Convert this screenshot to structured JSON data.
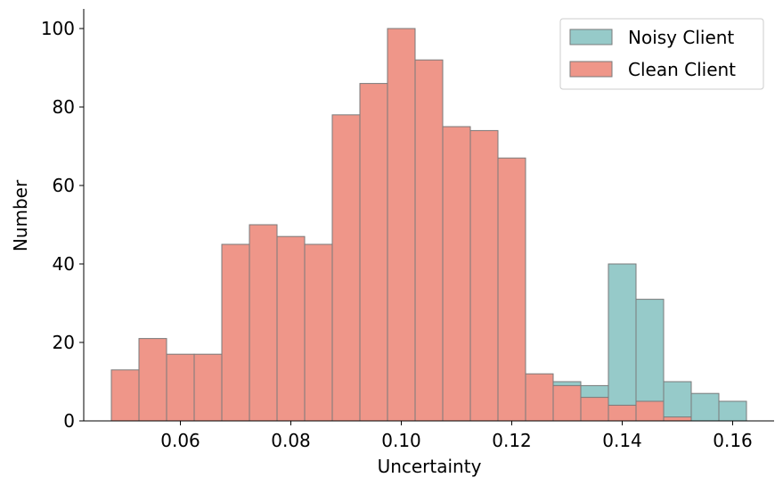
{
  "chart_data": {
    "type": "bar",
    "subtype": "overlapping-histogram",
    "xlabel": "Uncertainty",
    "ylabel": "Number",
    "xlim": [
      0.0425,
      0.1675
    ],
    "ylim": [
      0,
      105
    ],
    "xticks": [
      0.06,
      0.08,
      0.1,
      0.12,
      0.14,
      0.16
    ],
    "xtick_labels": [
      "0.06",
      "0.08",
      "0.10",
      "0.12",
      "0.14",
      "0.16"
    ],
    "yticks": [
      0,
      20,
      40,
      60,
      80,
      100
    ],
    "ytick_labels": [
      "0",
      "20",
      "40",
      "60",
      "80",
      "100"
    ],
    "grid": false,
    "legend_position": "top-right",
    "series": [
      {
        "name": "Noisy Client",
        "color": "#96cac9",
        "bins": [
          {
            "x0": 0.1275,
            "x1": 0.1325,
            "value": 10
          },
          {
            "x0": 0.1325,
            "x1": 0.1375,
            "value": 9
          },
          {
            "x0": 0.1375,
            "x1": 0.1425,
            "value": 40
          },
          {
            "x0": 0.1425,
            "x1": 0.1475,
            "value": 31
          },
          {
            "x0": 0.1475,
            "x1": 0.1525,
            "value": 10
          },
          {
            "x0": 0.1525,
            "x1": 0.1575,
            "value": 7
          },
          {
            "x0": 0.1575,
            "x1": 0.1625,
            "value": 5
          }
        ]
      },
      {
        "name": "Clean Client",
        "color": "#ef9689",
        "bins": [
          {
            "x0": 0.0475,
            "x1": 0.0525,
            "value": 13
          },
          {
            "x0": 0.0525,
            "x1": 0.0575,
            "value": 21
          },
          {
            "x0": 0.0575,
            "x1": 0.0625,
            "value": 17
          },
          {
            "x0": 0.0625,
            "x1": 0.0675,
            "value": 17
          },
          {
            "x0": 0.0675,
            "x1": 0.0725,
            "value": 45
          },
          {
            "x0": 0.0725,
            "x1": 0.0775,
            "value": 50
          },
          {
            "x0": 0.0775,
            "x1": 0.0825,
            "value": 47
          },
          {
            "x0": 0.0825,
            "x1": 0.0875,
            "value": 45
          },
          {
            "x0": 0.0875,
            "x1": 0.0925,
            "value": 78
          },
          {
            "x0": 0.0925,
            "x1": 0.0975,
            "value": 86
          },
          {
            "x0": 0.0975,
            "x1": 0.1025,
            "value": 100
          },
          {
            "x0": 0.1025,
            "x1": 0.1075,
            "value": 92
          },
          {
            "x0": 0.1075,
            "x1": 0.1125,
            "value": 75
          },
          {
            "x0": 0.1125,
            "x1": 0.1175,
            "value": 74
          },
          {
            "x0": 0.1175,
            "x1": 0.1225,
            "value": 67
          },
          {
            "x0": 0.1225,
            "x1": 0.1275,
            "value": 12
          },
          {
            "x0": 0.1275,
            "x1": 0.1325,
            "value": 9
          },
          {
            "x0": 0.1325,
            "x1": 0.1375,
            "value": 6
          },
          {
            "x0": 0.1375,
            "x1": 0.1425,
            "value": 4
          },
          {
            "x0": 0.1425,
            "x1": 0.1475,
            "value": 5
          },
          {
            "x0": 0.1475,
            "x1": 0.1525,
            "value": 1
          }
        ]
      }
    ],
    "bar_edge_color": "#7a7a7a",
    "axis_color": "#000000"
  }
}
